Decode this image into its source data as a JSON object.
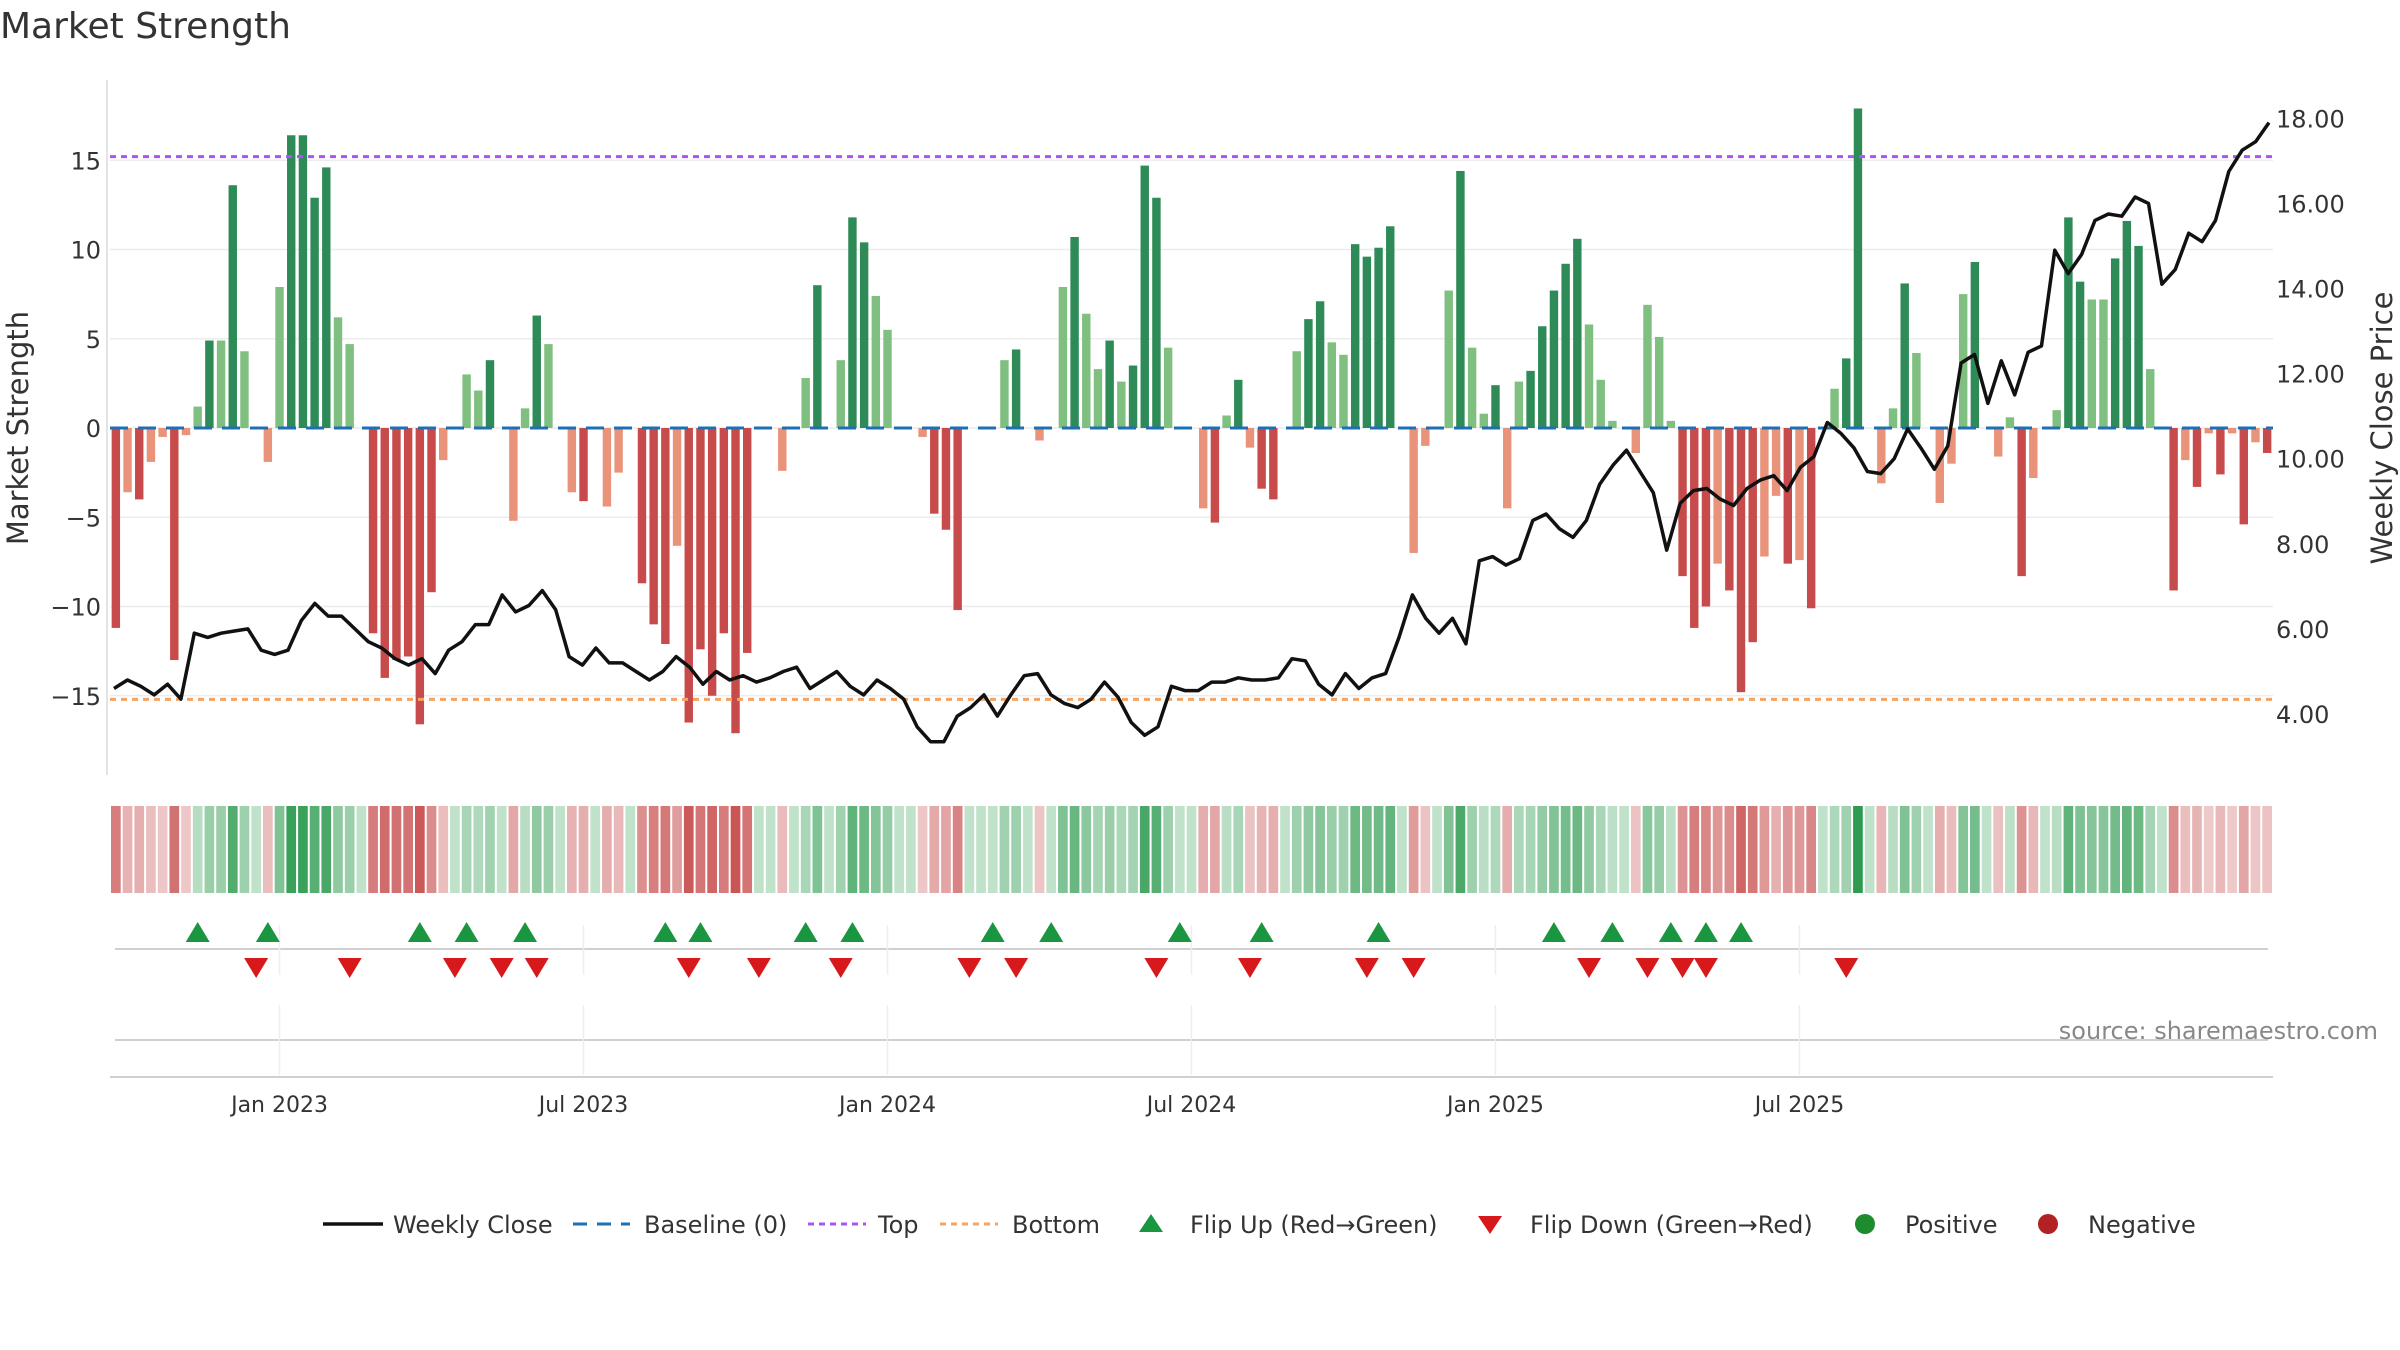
{
  "title": "Market Strength",
  "source": "source: sharemaestro.com",
  "chart_data": {
    "type": "bar",
    "title": "Market Strength",
    "ylabel_left": "Market Strength",
    "ylabel_right": "Weekly Close Price",
    "ylim_left": [
      -19.5,
      19.5
    ],
    "ylim_right": [
      2.4,
      18.6
    ],
    "yticks_left": [
      -15,
      -10,
      -5,
      0,
      5,
      10,
      15
    ],
    "yticks_right": [
      "4.00",
      "6.00",
      "8.00",
      "10.00",
      "12.00",
      "14.00",
      "16.00",
      "18.00"
    ],
    "top_level": 15.2,
    "bottom_level": -15.2,
    "x_labels": [
      "Jan 2023",
      "Jul 2023",
      "Jan 2024",
      "Jul 2024",
      "Jan 2025",
      "Jul 2025"
    ],
    "x_label_weeks": [
      14,
      40,
      66,
      92,
      118,
      144
    ],
    "strength": [
      -11.2,
      -3.6,
      -4.0,
      -1.9,
      -0.5,
      -13.0,
      -0.4,
      1.2,
      4.9,
      4.9,
      13.6,
      4.3,
      0,
      -1.9,
      7.9,
      16.4,
      16.4,
      12.9,
      14.6,
      6.2,
      4.7,
      0,
      -11.5,
      -14.0,
      -13.0,
      -12.8,
      -16.6,
      -9.2,
      -1.8,
      0,
      3.0,
      2.1,
      3.8,
      0,
      -5.2,
      1.1,
      6.3,
      4.7,
      0,
      -3.6,
      -4.1,
      0,
      -4.4,
      -2.5,
      0,
      -8.7,
      -11.0,
      -12.1,
      -6.6,
      -16.5,
      -12.4,
      -15.0,
      -11.5,
      -17.1,
      -12.6,
      0,
      0,
      -2.4,
      0,
      2.8,
      8.0,
      0,
      3.8,
      11.8,
      10.4,
      7.4,
      5.5,
      0,
      0,
      -0.5,
      -4.8,
      -5.7,
      -10.2,
      0,
      0,
      0,
      3.8,
      4.4,
      0,
      -0.7,
      0,
      7.9,
      10.7,
      6.4,
      3.3,
      4.9,
      2.6,
      3.5,
      14.7,
      12.9,
      4.5,
      0,
      0,
      -4.5,
      -5.3,
      0.7,
      2.7,
      -1.1,
      -3.4,
      -4.0,
      0,
      4.3,
      6.1,
      7.1,
      4.8,
      4.1,
      10.3,
      9.6,
      10.1,
      11.3,
      0,
      -7.0,
      -1.0,
      0,
      7.7,
      14.4,
      4.5,
      0.8,
      2.4,
      -4.5,
      2.6,
      3.2,
      5.7,
      7.7,
      9.2,
      10.6,
      5.8,
      2.7,
      0.4,
      0,
      -1.4,
      6.9,
      5.1,
      0.4,
      -8.3,
      -11.2,
      -10.0,
      -7.6,
      -9.1,
      -14.8,
      -12.0,
      -7.2,
      -3.8,
      -7.6,
      -7.4,
      -10.1,
      0,
      2.2,
      3.9,
      17.9,
      0,
      -3.1,
      1.1,
      8.1,
      4.2,
      0,
      -4.2,
      -2.0,
      7.5,
      9.3,
      0,
      -1.6,
      0.6,
      -8.3,
      -2.8,
      0,
      1.0,
      11.8,
      8.2,
      7.2,
      7.2,
      9.5,
      11.6,
      10.2,
      3.3,
      0,
      -9.1,
      -1.8,
      -3.3,
      -0.3,
      -2.6,
      -0.3,
      -5.4,
      -0.8,
      -1.4
    ],
    "close": [
      4.6,
      4.8,
      4.65,
      4.45,
      4.7,
      4.35,
      5.9,
      5.8,
      5.9,
      5.95,
      6.0,
      5.5,
      5.4,
      5.5,
      6.2,
      6.6,
      6.3,
      6.3,
      6.0,
      5.7,
      5.55,
      5.3,
      5.15,
      5.3,
      4.95,
      5.5,
      5.7,
      6.1,
      6.1,
      6.8,
      6.4,
      6.55,
      6.9,
      6.45,
      5.35,
      5.15,
      5.55,
      5.2,
      5.2,
      5.0,
      4.8,
      5.0,
      5.35,
      5.1,
      4.7,
      5.0,
      4.8,
      4.9,
      4.75,
      4.85,
      5.0,
      5.1,
      4.6,
      4.8,
      5.0,
      4.65,
      4.45,
      4.8,
      4.6,
      4.35,
      3.7,
      3.35,
      3.35,
      3.95,
      4.15,
      4.45,
      3.95,
      4.45,
      4.9,
      4.95,
      4.45,
      4.25,
      4.15,
      4.35,
      4.75,
      4.4,
      3.8,
      3.5,
      3.7,
      4.65,
      4.55,
      4.55,
      4.75,
      4.75,
      4.85,
      4.8,
      4.8,
      4.85,
      5.3,
      5.25,
      4.7,
      4.45,
      4.95,
      4.6,
      4.85,
      4.95,
      5.8,
      6.8,
      6.25,
      5.9,
      6.25,
      5.65,
      7.6,
      7.7,
      7.5,
      7.65,
      8.55,
      8.7,
      8.35,
      8.15,
      8.55,
      9.4,
      9.85,
      10.2,
      9.7,
      9.2,
      7.85,
      8.95,
      9.25,
      9.3,
      9.05,
      8.9,
      9.3,
      9.5,
      9.6,
      9.25,
      9.8,
      10.05,
      10.85,
      10.6,
      10.25,
      9.7,
      9.65,
      10.0,
      10.7,
      10.25,
      9.75,
      10.3,
      12.25,
      12.45,
      11.3,
      12.3,
      11.5,
      12.5,
      12.65,
      14.9,
      14.35,
      14.8,
      15.6,
      15.75,
      15.7,
      16.15,
      16.0,
      14.1,
      14.45,
      15.3,
      15.1,
      15.6,
      16.75,
      17.25,
      17.45,
      17.9
    ],
    "flips_up_weeks": [
      7,
      13,
      26,
      30,
      35,
      47,
      50,
      59,
      63,
      75,
      80,
      91,
      98,
      108,
      123,
      128,
      133,
      136,
      139
    ],
    "flips_down_weeks": [
      12,
      20,
      29,
      33,
      36,
      49,
      55,
      62,
      73,
      77,
      89,
      97,
      107,
      111,
      126,
      131,
      134,
      136,
      148
    ],
    "legend": [
      "Weekly Close",
      "Baseline (0)",
      "Top",
      "Bottom",
      "Flip Up (Red→Green)",
      "Flip Down (Green→Red)",
      "Positive",
      "Negative"
    ],
    "colors": {
      "line": "#111111",
      "baseline": "#1f6fb4",
      "top": "#a855f7",
      "bottom": "#f4a460",
      "up_strong": "#2e8b57",
      "up_light": "#7fbf7f",
      "down_strong": "#c84b4b",
      "down_light": "#e8937a",
      "flip_up": "#1a9641",
      "flip_down": "#d7191c",
      "positive": "#1e8b2e",
      "negative": "#b22222"
    },
    "grid": true,
    "legend_position": "bottom"
  }
}
